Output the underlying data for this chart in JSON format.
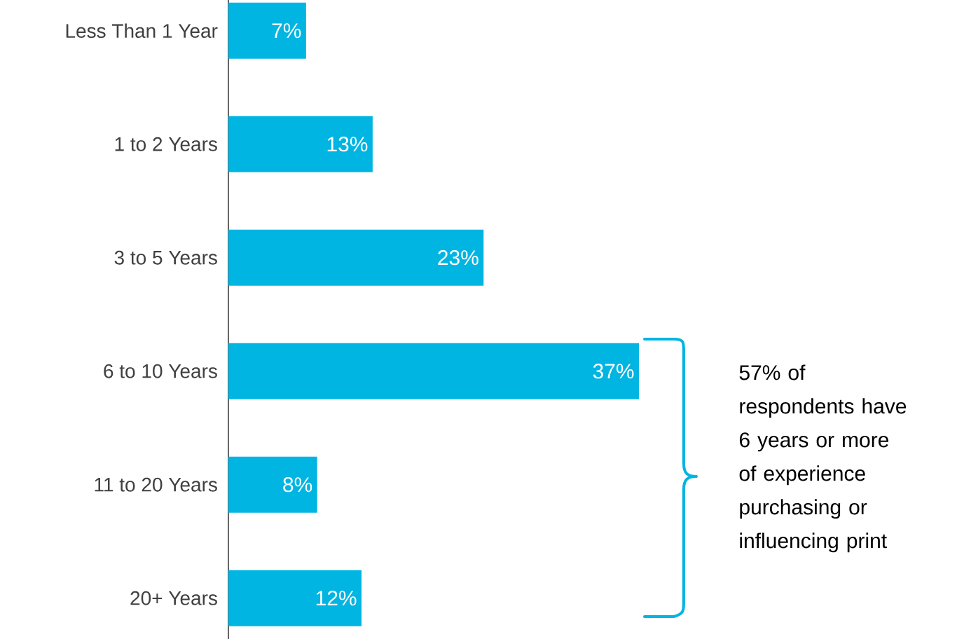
{
  "chart_data": {
    "type": "bar",
    "orientation": "horizontal",
    "categories": [
      "Less Than 1 Year",
      "1 to 2 Years",
      "3 to 5 Years",
      "6 to 10 Years",
      "11 to 20 Years",
      "20+ Years"
    ],
    "values": [
      7,
      13,
      23,
      37,
      8,
      12
    ],
    "value_labels": [
      "7%",
      "13%",
      "23%",
      "37%",
      "8%",
      "12%"
    ],
    "color": "#00b5e2",
    "annotations": [
      "57% of respondents have 6 years or more of experience purchasing or influencing print"
    ]
  }
}
